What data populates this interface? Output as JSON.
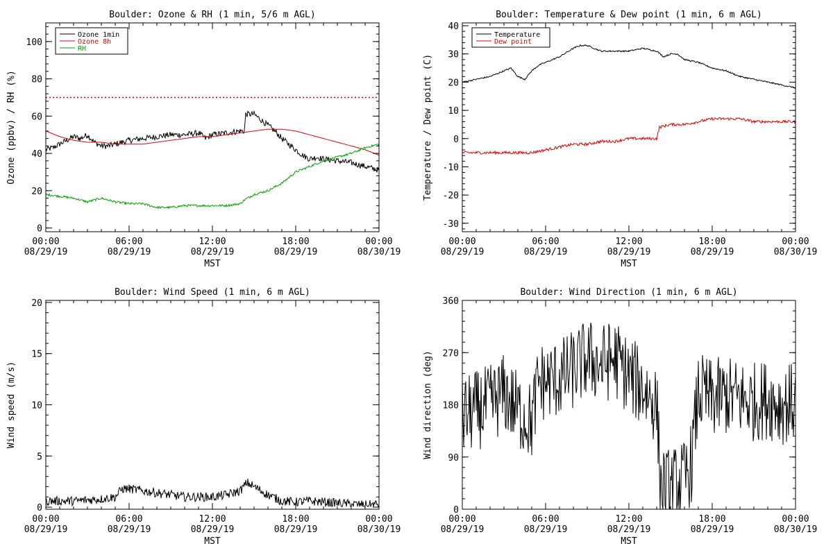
{
  "chart_data": [
    {
      "type": "line",
      "title": "Boulder: Ozone & RH (1 min, 5/6 m AGL)",
      "xlabel": "MST",
      "ylabel": "Ozone (ppbv) / RH (%)",
      "xlim": [
        0,
        24
      ],
      "ylim": [
        -2,
        110
      ],
      "yticks": [
        0,
        20,
        40,
        60,
        80,
        100
      ],
      "xticks": [
        {
          "value": 0,
          "line1": "00:00",
          "line2": "08/29/19"
        },
        {
          "value": 6,
          "line1": "06:00",
          "line2": "08/29/19"
        },
        {
          "value": 12,
          "line1": "12:00",
          "line2": "08/29/19"
        },
        {
          "value": 18,
          "line1": "18:00",
          "line2": "08/29/19"
        },
        {
          "value": 24,
          "line1": "00:00",
          "line2": "08/30/19"
        }
      ],
      "legend": "top-left",
      "grid": false,
      "reference_line": {
        "y": 70,
        "color": "#e00000",
        "style": "dotted"
      },
      "series": [
        {
          "name": "Ozone 1min",
          "color": "#000000",
          "noise": 1.6,
          "x": [
            0,
            0.5,
            1,
            1.5,
            2,
            2.5,
            3,
            3.5,
            4,
            4.5,
            5,
            6,
            7,
            8,
            9,
            10,
            11,
            11.5,
            12,
            13,
            14,
            14.3,
            14.4,
            15,
            16,
            16.5,
            17,
            17.5,
            18,
            18.5,
            19,
            19.5,
            20,
            21,
            22,
            23,
            24
          ],
          "y": [
            42,
            43,
            45,
            47,
            49,
            48,
            50,
            46,
            44,
            44,
            45,
            47,
            48,
            49,
            50,
            50,
            51,
            48,
            50,
            51,
            52,
            52,
            61,
            61,
            55,
            52,
            48,
            45,
            42,
            39,
            37,
            38,
            37,
            36,
            35,
            33,
            31
          ]
        },
        {
          "name": "Ozone 8h",
          "color": "#e00000",
          "noise": 0,
          "x": [
            0,
            1,
            2,
            3,
            4,
            5,
            6,
            7,
            8,
            9,
            10,
            11,
            12,
            13,
            14,
            15,
            16,
            17,
            18,
            19,
            20,
            21,
            22,
            23,
            24
          ],
          "y": [
            52,
            49,
            47,
            46,
            46,
            45,
            45,
            45,
            46,
            47,
            48,
            49,
            49,
            50,
            51,
            52,
            53,
            53,
            52,
            50,
            48,
            46,
            44,
            42,
            39
          ]
        },
        {
          "name": "RH",
          "color": "#00a000",
          "noise": 0.6,
          "x": [
            0,
            1,
            2,
            3,
            3.5,
            4,
            5,
            6,
            7,
            8,
            9,
            10,
            11,
            12,
            13,
            14,
            14.3,
            15,
            16,
            17,
            18,
            19,
            20,
            21,
            22,
            23,
            24
          ],
          "y": [
            18,
            17,
            16,
            14,
            15,
            16,
            14,
            13,
            13,
            11,
            11,
            12,
            12,
            12,
            12,
            13,
            15,
            18,
            20,
            24,
            30,
            33,
            36,
            38,
            40,
            43,
            45
          ]
        }
      ]
    },
    {
      "type": "line",
      "title": "Boulder: Temperature & Dew point (1 min, 6 m AGL)",
      "xlabel": "MST",
      "ylabel": "Temperature / Dew point (C)",
      "xlim": [
        0,
        24
      ],
      "ylim": [
        -33,
        41
      ],
      "yticks": [
        -30,
        -20,
        -10,
        0,
        10,
        20,
        30,
        40
      ],
      "xticks": [
        {
          "value": 0,
          "line1": "00:00",
          "line2": "08/29/19"
        },
        {
          "value": 6,
          "line1": "06:00",
          "line2": "08/29/19"
        },
        {
          "value": 12,
          "line1": "12:00",
          "line2": "08/29/19"
        },
        {
          "value": 18,
          "line1": "18:00",
          "line2": "08/29/19"
        },
        {
          "value": 24,
          "line1": "00:00",
          "line2": "08/30/19"
        }
      ],
      "legend": "top-left",
      "grid": false,
      "series": [
        {
          "name": "Temperature",
          "color": "#000000",
          "noise": 0.25,
          "x": [
            0,
            1,
            2,
            3,
            3.5,
            4,
            4.5,
            5,
            5.5,
            6,
            7,
            8,
            8.5,
            9,
            9.5,
            10,
            11,
            12,
            13,
            14,
            14.5,
            15,
            15.5,
            16,
            17,
            18,
            19,
            20,
            21,
            22,
            23,
            24
          ],
          "y": [
            20,
            21,
            22,
            24,
            25,
            22,
            21,
            24,
            26,
            27,
            29,
            32,
            33,
            33,
            32,
            31,
            31,
            31,
            32,
            31,
            29,
            30,
            30,
            28,
            27,
            25,
            24,
            22,
            21,
            20,
            19,
            18
          ]
        },
        {
          "name": "Dew point",
          "color": "#e00000",
          "noise": 0.5,
          "x": [
            0,
            2,
            3,
            4,
            5,
            6,
            7,
            8,
            9,
            10,
            11,
            12,
            13,
            14,
            14.2,
            15,
            16,
            17,
            18,
            19,
            20,
            21,
            22,
            23,
            24
          ],
          "y": [
            -5,
            -5,
            -5,
            -5,
            -5,
            -4,
            -3,
            -2,
            -2,
            -1,
            -1,
            0,
            0,
            0,
            4,
            5,
            5,
            6,
            7,
            7,
            7,
            6,
            6,
            6,
            6
          ]
        }
      ]
    },
    {
      "type": "line",
      "title": "Boulder: Wind Speed (1 min, 6 m AGL)",
      "xlabel": "MST",
      "ylabel": "Wind speed (m/s)",
      "xlim": [
        0,
        24
      ],
      "ylim": [
        -0.2,
        20.2
      ],
      "yticks": [
        0,
        5,
        10,
        15,
        20
      ],
      "xticks": [
        {
          "value": 0,
          "line1": "00:00",
          "line2": "08/29/19"
        },
        {
          "value": 6,
          "line1": "06:00",
          "line2": "08/29/19"
        },
        {
          "value": 12,
          "line1": "12:00",
          "line2": "08/29/19"
        },
        {
          "value": 18,
          "line1": "18:00",
          "line2": "08/29/19"
        },
        {
          "value": 24,
          "line1": "00:00",
          "line2": "08/30/19"
        }
      ],
      "legend": "none",
      "grid": false,
      "series": [
        {
          "name": "",
          "color": "#000000",
          "noise": 0.45,
          "x": [
            0,
            2,
            4,
            5,
            5.5,
            6,
            7,
            8,
            9,
            10,
            11,
            12,
            13,
            14,
            14.5,
            15,
            16,
            17,
            18,
            19,
            20,
            21,
            22,
            23,
            24
          ],
          "y": [
            0.6,
            0.6,
            0.8,
            1.0,
            1.8,
            1.8,
            1.6,
            1.4,
            1.2,
            1.0,
            1.0,
            1.0,
            1.2,
            1.6,
            2.4,
            2.0,
            1.2,
            0.6,
            0.5,
            0.6,
            0.5,
            0.4,
            0.3,
            0.2,
            0.3
          ]
        }
      ]
    },
    {
      "type": "line",
      "title": "Boulder: Wind Direction (1 min, 6 m AGL)",
      "xlabel": "MST",
      "ylabel": "Wind direction (deg)",
      "xlim": [
        0,
        24
      ],
      "ylim": [
        0,
        360
      ],
      "yticks": [
        0,
        90,
        180,
        270,
        360
      ],
      "xticks": [
        {
          "value": 0,
          "line1": "00:00",
          "line2": "08/29/19"
        },
        {
          "value": 6,
          "line1": "06:00",
          "line2": "08/29/19"
        },
        {
          "value": 12,
          "line1": "12:00",
          "line2": "08/29/19"
        },
        {
          "value": 18,
          "line1": "18:00",
          "line2": "08/29/19"
        },
        {
          "value": 24,
          "line1": "00:00",
          "line2": "08/30/19"
        }
      ],
      "legend": "none",
      "grid": false,
      "series": [
        {
          "name": "",
          "color": "#000000",
          "noise": 70,
          "x": [
            0,
            1,
            2,
            3,
            4,
            5,
            5.5,
            6,
            7,
            8,
            9,
            10,
            11,
            12,
            13,
            14,
            14.3,
            15,
            16,
            16.5,
            17,
            17.5,
            18,
            19,
            20,
            21,
            22,
            23,
            24
          ],
          "y": [
            160,
            170,
            180,
            200,
            170,
            150,
            220,
            220,
            225,
            240,
            260,
            250,
            260,
            230,
            210,
            180,
            40,
            35,
            50,
            80,
            200,
            195,
            190,
            195,
            190,
            185,
            190,
            180,
            185
          ]
        }
      ]
    }
  ]
}
